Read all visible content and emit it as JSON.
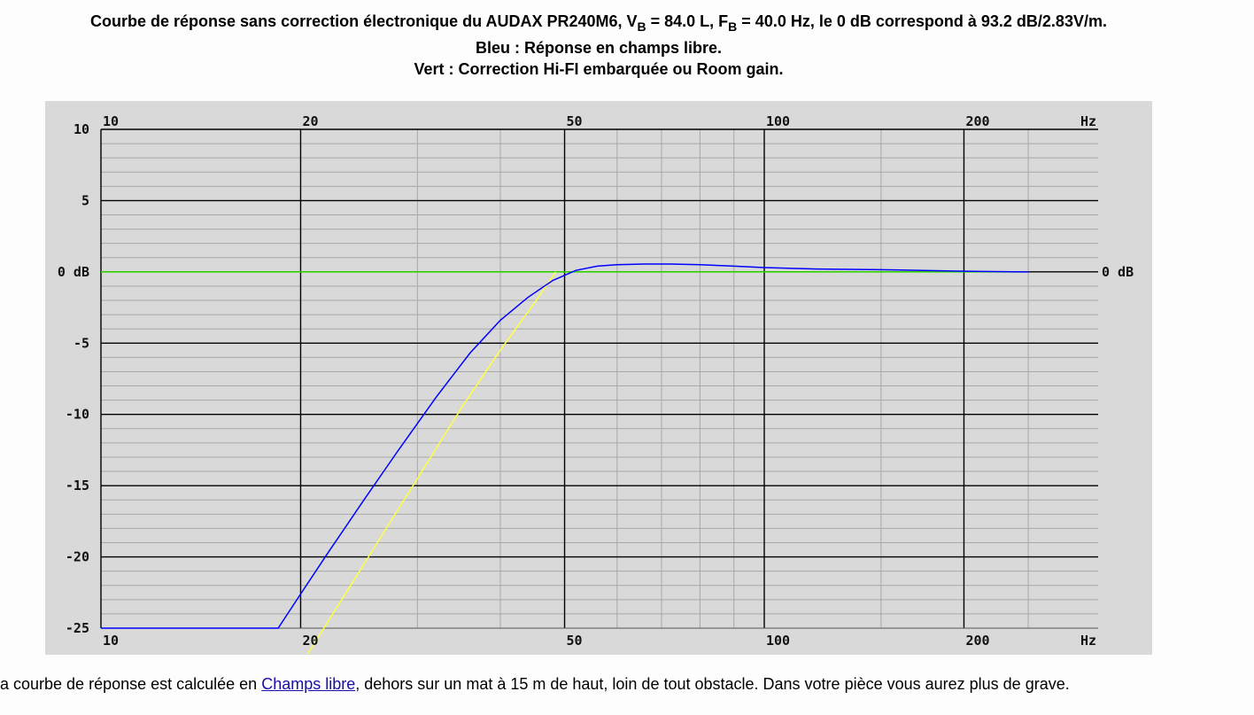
{
  "title": {
    "line1_prefix": "Courbe de réponse sans correction électronique du AUDAX PR240M6, V",
    "vb_sub": "B",
    "line1_mid": " = 84.0 L, F",
    "fb_sub": "B",
    "line1_suffix": " = 40.0 Hz, le 0 dB correspond à 93.2 dB/2.83V/m.",
    "line2": "Bleu : Réponse en champs libre.",
    "line3": "Vert : Correction Hi-FI embarquée ou Room gain."
  },
  "caption": {
    "prefix": "a courbe de réponse est calculée en ",
    "link": "Champs libre",
    "suffix": ", dehors sur un mat à 15 m de haut, loin de tout obstacle. Dans votre pièce vous aurez plus de grave."
  },
  "colors": {
    "plot_bg": "#d9d9d9",
    "grid_minor": "#a8a8a8",
    "grid_major": "#000000",
    "blue_curve": "#0000ff",
    "green_curve": "#33dd00",
    "yellow_curve": "#ffff44"
  },
  "chart_data": {
    "type": "line",
    "x_scale": "log",
    "xlim": [
      10,
      250
    ],
    "ylim": [
      -25,
      10
    ],
    "grid": true,
    "x_ticks": [
      10,
      20,
      50,
      100,
      200
    ],
    "x_tick_labels": [
      "10",
      "20",
      "50",
      "100",
      "200"
    ],
    "x_unit_label": "Hz",
    "y_ticks": [
      10,
      5,
      0,
      -5,
      -10,
      -15,
      -20,
      -25
    ],
    "y_tick_labels": [
      "10",
      "5",
      "0 dB",
      "-5",
      "-10",
      "-15",
      "-20",
      "-25"
    ],
    "y_right_label": "0 dB",
    "series": [
      {
        "color": "blue",
        "x": [
          10,
          18.5,
          20,
          22,
          25,
          28,
          32,
          36,
          40,
          44,
          48,
          52,
          56,
          60,
          66,
          72,
          80,
          90,
          100,
          120,
          150,
          200,
          250
        ],
        "y": [
          -25,
          -25,
          -22.6,
          -19.7,
          -15.9,
          -12.6,
          -8.8,
          -5.7,
          -3.4,
          -1.8,
          -0.6,
          0.1,
          0.4,
          0.5,
          0.55,
          0.55,
          0.5,
          0.4,
          0.3,
          0.2,
          0.15,
          0.05,
          0
        ]
      },
      {
        "color": "green",
        "x": [
          10,
          250
        ],
        "y": [
          0,
          0
        ]
      },
      {
        "color": "yellow",
        "x": [
          20.5,
          25,
          30,
          35,
          40,
          45,
          48.5
        ],
        "y": [
          -26.8,
          -20.4,
          -14.5,
          -9.5,
          -5.5,
          -2.2,
          0
        ]
      }
    ]
  }
}
